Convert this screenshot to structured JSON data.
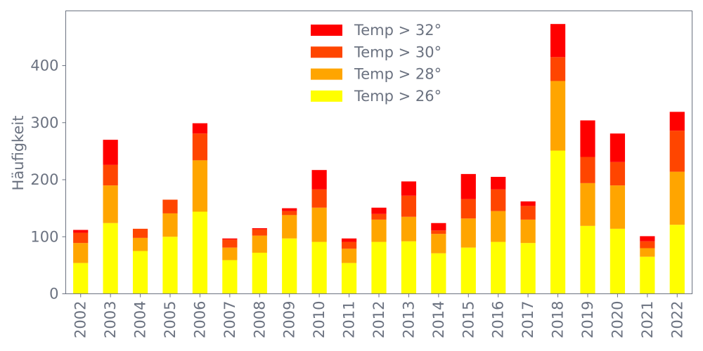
{
  "chart_data": {
    "type": "bar",
    "stacked": true,
    "title": "",
    "xlabel": "",
    "ylabel": "Häufigkeit",
    "ylim": [
      0,
      496
    ],
    "yticks": [
      0,
      100,
      200,
      300,
      400
    ],
    "legend_position": "top-center",
    "grid": false,
    "categories": [
      "2002",
      "2003",
      "2004",
      "2005",
      "2006",
      "2007",
      "2008",
      "2009",
      "2010",
      "2011",
      "2012",
      "2013",
      "2014",
      "2015",
      "2016",
      "2017",
      "2018",
      "2019",
      "2020",
      "2021",
      "2022"
    ],
    "series": [
      {
        "name": "Temp > 26°",
        "color": "#ffff00",
        "values": [
          54,
          124,
          75,
          100,
          144,
          59,
          72,
          97,
          91,
          54,
          91,
          92,
          71,
          81,
          91,
          89,
          251,
          119,
          114,
          65,
          121
        ]
      },
      {
        "name": "Temp > 28°",
        "color": "#ffa500",
        "values": [
          35,
          66,
          23,
          41,
          90,
          22,
          30,
          41,
          60,
          25,
          39,
          43,
          34,
          51,
          54,
          41,
          122,
          75,
          76,
          15,
          93
        ]
      },
      {
        "name": "Temp > 30°",
        "color": "#ff4500",
        "values": [
          18,
          36,
          16,
          24,
          47,
          14,
          11,
          7,
          32,
          12,
          10,
          37,
          6,
          34,
          38,
          24,
          42,
          46,
          41,
          12,
          72
        ]
      },
      {
        "name": "Temp > 32°",
        "color": "#ff0000",
        "values": [
          5,
          44,
          0,
          0,
          18,
          2,
          2,
          5,
          34,
          6,
          11,
          25,
          13,
          44,
          22,
          8,
          58,
          64,
          50,
          9,
          33
        ]
      }
    ]
  }
}
